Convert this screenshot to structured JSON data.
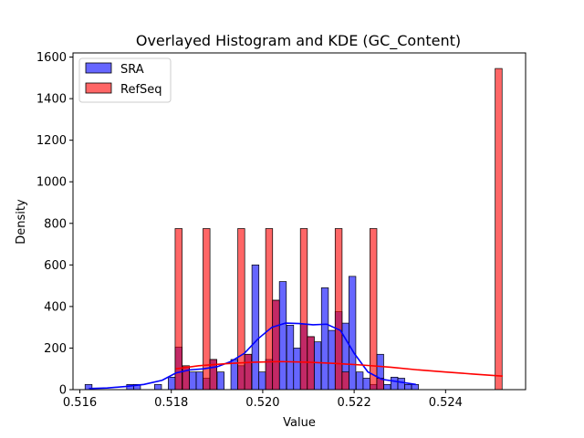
{
  "chart_data": {
    "type": "bar",
    "title": "Overlayed Histogram and KDE (GC_Content)",
    "xlabel": "Value",
    "ylabel": "Density",
    "xlim": [
      0.51585,
      0.52575
    ],
    "ylim": [
      0,
      1620
    ],
    "x_ticks": [
      0.516,
      0.518,
      0.52,
      0.522,
      0.524
    ],
    "x_tick_labels": [
      "0.516",
      "0.518",
      "0.520",
      "0.522",
      "0.524"
    ],
    "y_ticks": [
      0,
      200,
      400,
      600,
      800,
      1000,
      1200,
      1400,
      1600
    ],
    "y_tick_labels": [
      "0",
      "200",
      "400",
      "600",
      "800",
      "1000",
      "1200",
      "1400",
      "1600"
    ],
    "grid": false,
    "legend_position": "top-left",
    "series": [
      {
        "name": "SRA",
        "kind": "histogram",
        "color": "#0000ff",
        "bin_width": 0.000152,
        "bins": [
          {
            "x": 0.51619,
            "value": 25
          },
          {
            "x": 0.5171,
            "value": 25
          },
          {
            "x": 0.51725,
            "value": 25
          },
          {
            "x": 0.51771,
            "value": 25
          },
          {
            "x": 0.51801,
            "value": 60
          },
          {
            "x": 0.51816,
            "value": 205
          },
          {
            "x": 0.51832,
            "value": 110
          },
          {
            "x": 0.51847,
            "value": 85
          },
          {
            "x": 0.51862,
            "value": 85
          },
          {
            "x": 0.51877,
            "value": 55
          },
          {
            "x": 0.51892,
            "value": 145
          },
          {
            "x": 0.51908,
            "value": 85
          },
          {
            "x": 0.51938,
            "value": 145
          },
          {
            "x": 0.51953,
            "value": 115
          },
          {
            "x": 0.51968,
            "value": 170
          },
          {
            "x": 0.51984,
            "value": 600
          },
          {
            "x": 0.51999,
            "value": 85
          },
          {
            "x": 0.52014,
            "value": 145
          },
          {
            "x": 0.52029,
            "value": 430
          },
          {
            "x": 0.52044,
            "value": 520
          },
          {
            "x": 0.5206,
            "value": 310
          },
          {
            "x": 0.52075,
            "value": 200
          },
          {
            "x": 0.5209,
            "value": 315
          },
          {
            "x": 0.52105,
            "value": 255
          },
          {
            "x": 0.5212,
            "value": 230
          },
          {
            "x": 0.52136,
            "value": 490
          },
          {
            "x": 0.52151,
            "value": 285
          },
          {
            "x": 0.52166,
            "value": 375
          },
          {
            "x": 0.52181,
            "value": 320
          },
          {
            "x": 0.52196,
            "value": 545
          },
          {
            "x": 0.52212,
            "value": 85
          },
          {
            "x": 0.52227,
            "value": 55
          },
          {
            "x": 0.52242,
            "value": 25
          },
          {
            "x": 0.52257,
            "value": 170
          },
          {
            "x": 0.52272,
            "value": 25
          },
          {
            "x": 0.52288,
            "value": 60
          },
          {
            "x": 0.52303,
            "value": 55
          },
          {
            "x": 0.52318,
            "value": 25
          },
          {
            "x": 0.52333,
            "value": 25
          }
        ],
        "kde": {
          "x": [
            0.5162,
            0.5166,
            0.517,
            0.5174,
            0.5178,
            0.5181,
            0.5184,
            0.5187,
            0.519,
            0.5193,
            0.5196,
            0.5199,
            0.5202,
            0.5205,
            0.5208,
            0.5211,
            0.5214,
            0.5217,
            0.522,
            0.5223,
            0.5226,
            0.5229,
            0.5232,
            0.52335
          ],
          "y": [
            5,
            8,
            15,
            25,
            45,
            80,
            95,
            100,
            110,
            135,
            175,
            245,
            300,
            320,
            318,
            312,
            315,
            285,
            175,
            85,
            50,
            40,
            30,
            25
          ]
        }
      },
      {
        "name": "RefSeq",
        "kind": "histogram",
        "color": "#ff0000",
        "bin_width": 0.000152,
        "bins": [
          {
            "x": 0.51816,
            "value": 775
          },
          {
            "x": 0.51832,
            "value": 115
          },
          {
            "x": 0.51877,
            "value": 775
          },
          {
            "x": 0.51892,
            "value": 145
          },
          {
            "x": 0.51953,
            "value": 775
          },
          {
            "x": 0.51968,
            "value": 170
          },
          {
            "x": 0.52014,
            "value": 775
          },
          {
            "x": 0.52029,
            "value": 430
          },
          {
            "x": 0.5209,
            "value": 775
          },
          {
            "x": 0.52105,
            "value": 255
          },
          {
            "x": 0.52166,
            "value": 775
          },
          {
            "x": 0.52181,
            "value": 85
          },
          {
            "x": 0.52242,
            "value": 775
          },
          {
            "x": 0.52257,
            "value": 55
          },
          {
            "x": 0.52516,
            "value": 1545
          }
        ],
        "kde": {
          "x": [
            0.5181,
            0.5186,
            0.5192,
            0.5198,
            0.5204,
            0.521,
            0.5216,
            0.5222,
            0.5228,
            0.5234,
            0.524,
            0.5246,
            0.52525
          ],
          "y": [
            100,
            115,
            125,
            132,
            135,
            132,
            126,
            118,
            108,
            95,
            85,
            75,
            65
          ]
        }
      }
    ]
  }
}
